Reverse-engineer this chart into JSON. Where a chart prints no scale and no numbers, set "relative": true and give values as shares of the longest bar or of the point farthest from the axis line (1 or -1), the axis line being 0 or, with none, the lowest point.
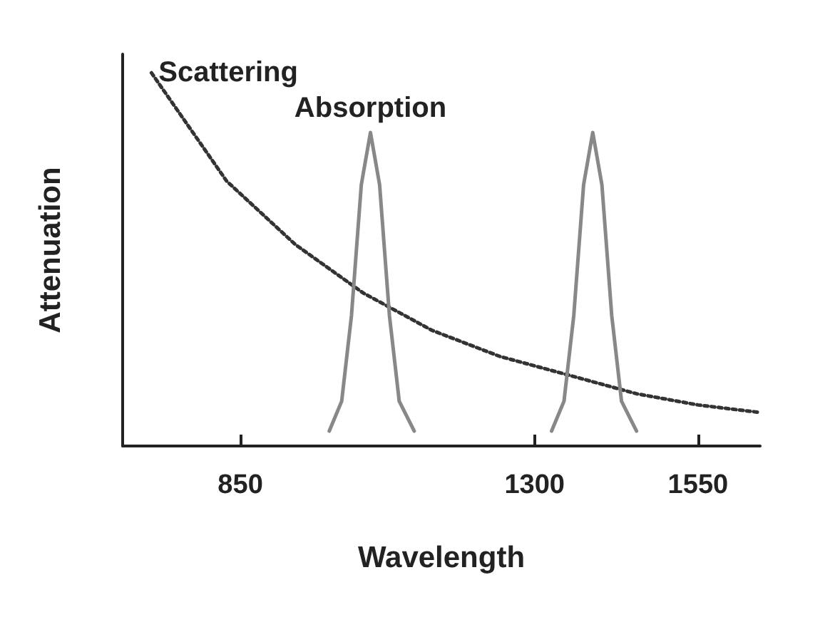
{
  "chart_data": {
    "type": "line",
    "relative": true,
    "xlabel": "Wavelength",
    "ylabel": "Attenuation",
    "xlim": [
      670,
      1645
    ],
    "xticks": [
      850,
      1300,
      1550
    ],
    "grid": false,
    "legend": false,
    "tick_labels": "x",
    "marker": "none",
    "series": [
      {
        "name": "Scattering",
        "color": "#333333",
        "line_style": "dotted",
        "x": [
          714,
          829,
          934,
          1038,
          1143,
          1247,
          1352,
          1456,
          1550,
          1644
        ],
        "values": [
          1.0,
          0.71,
          0.54,
          0.41,
          0.31,
          0.24,
          0.19,
          0.14,
          0.11,
          0.09
        ]
      },
      {
        "name": "Absorption",
        "color": "#888888",
        "line_style": "solid",
        "x": [
          986,
          1005,
          1020,
          1035,
          1049,
          1063,
          1078,
          1093,
          1116,
          1200,
          1326,
          1345,
          1360,
          1375,
          1389,
          1403,
          1418,
          1433,
          1456
        ],
        "values": [
          0.04,
          0.12,
          0.35,
          0.7,
          0.84,
          0.7,
          0.35,
          0.12,
          0.04,
          null,
          0.04,
          0.12,
          0.35,
          0.7,
          0.84,
          0.7,
          0.35,
          0.12,
          0.04
        ]
      }
    ]
  }
}
